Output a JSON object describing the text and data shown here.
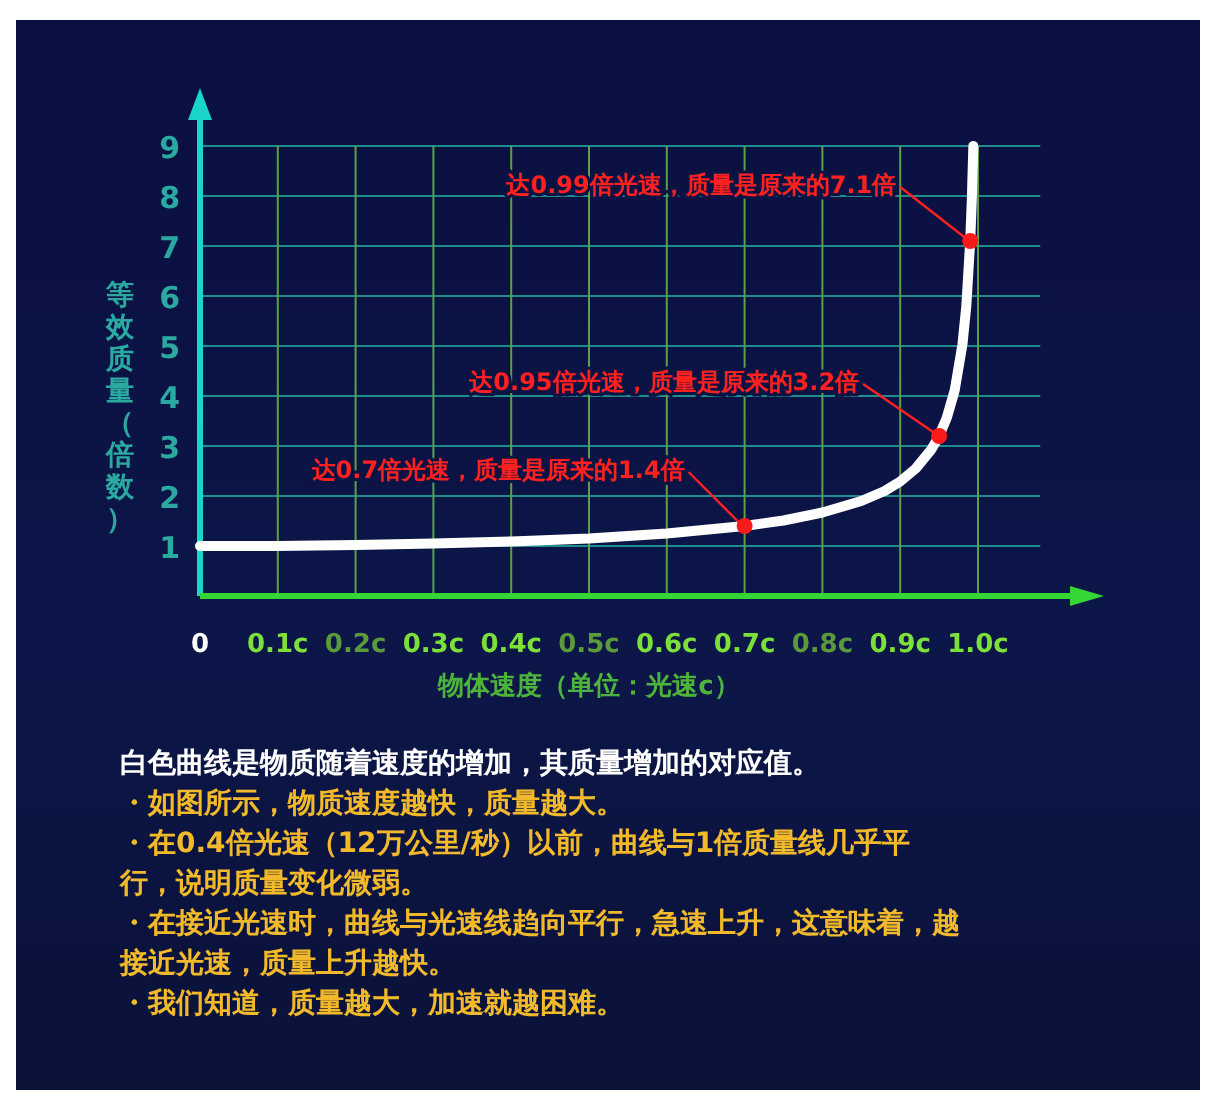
{
  "chart_data": {
    "type": "line",
    "xlabel": "物体速度（单位：光速c）",
    "ylabel": "等效质量（倍数）",
    "xlim": [
      0,
      1.08
    ],
    "ylim": [
      0,
      9
    ],
    "xticks": [
      {
        "value": 0,
        "label": "0"
      },
      {
        "value": 0.1,
        "label": "0.1c"
      },
      {
        "value": 0.2,
        "label": "0.2c"
      },
      {
        "value": 0.3,
        "label": "0.3c"
      },
      {
        "value": 0.4,
        "label": "0.4c"
      },
      {
        "value": 0.5,
        "label": "0.5c"
      },
      {
        "value": 0.6,
        "label": "0.6c"
      },
      {
        "value": 0.7,
        "label": "0.7c"
      },
      {
        "value": 0.8,
        "label": "0.8c"
      },
      {
        "value": 0.9,
        "label": "0.9c"
      },
      {
        "value": 1.0,
        "label": "1.0c"
      }
    ],
    "yticks": [
      1,
      2,
      3,
      4,
      5,
      6,
      7,
      8,
      9
    ],
    "grid": true,
    "series": [
      {
        "color": "#ffffff",
        "x": [
          0,
          0.1,
          0.2,
          0.3,
          0.4,
          0.5,
          0.6,
          0.7,
          0.75,
          0.8,
          0.85,
          0.88,
          0.9,
          0.92,
          0.94,
          0.95,
          0.96,
          0.97,
          0.98,
          0.985,
          0.99,
          0.992,
          0.994
        ],
        "values": [
          1,
          1.0,
          1.02,
          1.05,
          1.09,
          1.15,
          1.25,
          1.4,
          1.51,
          1.67,
          1.9,
          2.1,
          2.29,
          2.55,
          2.93,
          3.2,
          3.57,
          4.11,
          5.03,
          5.8,
          7.1,
          7.9,
          9
        ]
      },
      {
        "type": "scatter",
        "color": "#ff1a1a",
        "marker": "circle",
        "x": [
          0.7,
          0.95,
          0.99
        ],
        "values": [
          1.4,
          3.2,
          7.1
        ]
      }
    ],
    "annotations": [
      {
        "text": "达0.7倍光速，质量是原来的1.4倍",
        "x": 0.7,
        "y": 1.4
      },
      {
        "text": "达0.95倍光速，质量是原来的3.2倍",
        "x": 0.95,
        "y": 3.2
      },
      {
        "text": "达0.99倍光速，质量是原来的7.1倍",
        "x": 0.99,
        "y": 7.1
      },
      "白色曲线是物质随着速度的增加，其质量增加的对应值。",
      "・如图所示，物质速度越快，质量越大。",
      "・在0.4倍光速（12万公里/秒）以前，曲线与1倍质量线几乎平行，说明质量变化微弱。",
      "・在接近光速时，曲线与光速线趋向平行，急速上升，这意味着，越接近光速，质量上升越快。",
      "・我们知道，质量越大，加速就越困难。"
    ]
  }
}
